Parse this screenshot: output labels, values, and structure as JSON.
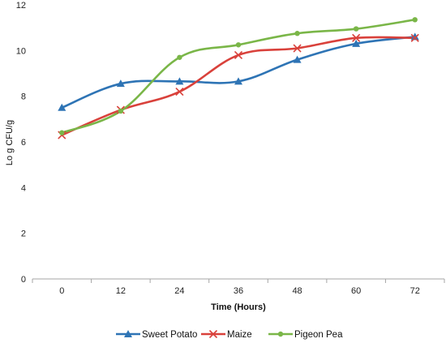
{
  "chart_data": {
    "type": "line",
    "title": "",
    "xlabel": "Time (Hours)",
    "ylabel": "Lo g CFU/g",
    "x": [
      0,
      12,
      24,
      36,
      48,
      60,
      72
    ],
    "x_tick_labels": [
      "0",
      "12",
      "24",
      "36",
      "48",
      "60",
      "72"
    ],
    "y_tick_labels": [
      "0",
      "2",
      "4",
      "6",
      "8",
      "10",
      "12"
    ],
    "ylim": [
      0,
      12
    ],
    "grid": false,
    "legend_position": "bottom",
    "smooth": true,
    "series": [
      {
        "name": "Sweet Potato",
        "color": "#2e74b5",
        "marker": "triangle",
        "values": [
          7.5,
          8.55,
          8.65,
          8.65,
          9.6,
          10.3,
          10.6
        ]
      },
      {
        "name": "Maize",
        "color": "#d9413b",
        "marker": "x",
        "values": [
          6.3,
          7.4,
          8.2,
          9.8,
          10.1,
          10.55,
          10.55
        ]
      },
      {
        "name": "Pigeon  Pea",
        "color": "#7ab648",
        "marker": "circle",
        "values": [
          6.4,
          7.35,
          9.7,
          10.25,
          10.75,
          10.95,
          11.35
        ]
      }
    ]
  }
}
